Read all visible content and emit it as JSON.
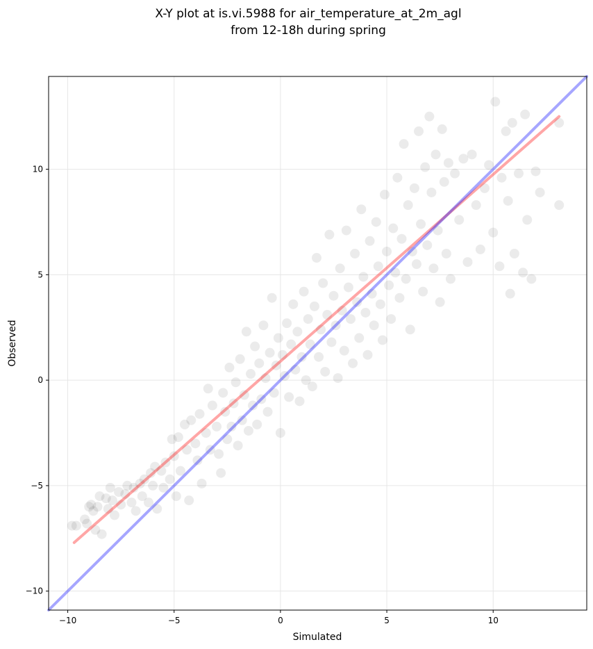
{
  "chart_data": {
    "type": "scatter",
    "title": "X-Y plot at is.vi.5988 for air_temperature_at_2m_agl",
    "subtitle": "from 12-18h during spring",
    "xlabel": "Simulated",
    "ylabel": "Observed",
    "xlim": [
      -10.9,
      14.4
    ],
    "ylim": [
      -10.9,
      14.4
    ],
    "xticks": [
      -10,
      -5,
      0,
      5,
      10
    ],
    "yticks": [
      -10,
      -5,
      0,
      5,
      10
    ],
    "xtick_labels": [
      "−10",
      "−5",
      "0",
      "5",
      "10"
    ],
    "ytick_labels": [
      "−10",
      "−5",
      "0",
      "5",
      "10"
    ],
    "grid": true,
    "marker_color": "#000000",
    "marker_alpha": 0.08,
    "series": [
      {
        "values": [
          [
            -9.8,
            -6.9
          ],
          [
            -9.6,
            -6.9
          ],
          [
            -9.2,
            -6.6
          ],
          [
            -9.1,
            -6.8
          ],
          [
            -9.0,
            -6.0
          ],
          [
            -8.9,
            -5.9
          ],
          [
            -8.8,
            -6.2
          ],
          [
            -8.7,
            -7.1
          ],
          [
            -8.6,
            -6.0
          ],
          [
            -8.5,
            -5.5
          ],
          [
            -8.4,
            -7.3
          ],
          [
            -8.2,
            -5.6
          ],
          [
            -8.1,
            -6.1
          ],
          [
            -8.0,
            -5.1
          ],
          [
            -7.9,
            -5.7
          ],
          [
            -7.8,
            -6.4
          ],
          [
            -7.6,
            -5.3
          ],
          [
            -7.5,
            -5.9
          ],
          [
            -7.3,
            -5.4
          ],
          [
            -7.2,
            -5.0
          ],
          [
            -7.0,
            -5.8
          ],
          [
            -6.9,
            -5.1
          ],
          [
            -6.8,
            -6.2
          ],
          [
            -6.6,
            -4.9
          ],
          [
            -6.5,
            -5.5
          ],
          [
            -6.4,
            -4.7
          ],
          [
            -6.2,
            -5.8
          ],
          [
            -6.1,
            -4.4
          ],
          [
            -6.0,
            -5.0
          ],
          [
            -5.9,
            -4.1
          ],
          [
            -5.8,
            -6.1
          ],
          [
            -5.6,
            -4.3
          ],
          [
            -5.5,
            -5.1
          ],
          [
            -5.4,
            -3.9
          ],
          [
            -5.2,
            -4.7
          ],
          [
            -5.1,
            -2.8
          ],
          [
            -5.0,
            -3.6
          ],
          [
            -4.9,
            -5.5
          ],
          [
            -4.8,
            -2.7
          ],
          [
            -4.7,
            -4.3
          ],
          [
            -4.5,
            -2.1
          ],
          [
            -4.4,
            -3.3
          ],
          [
            -4.3,
            -5.7
          ],
          [
            -4.2,
            -1.9
          ],
          [
            -4.0,
            -3.0
          ],
          [
            -3.9,
            -3.8
          ],
          [
            -3.8,
            -1.6
          ],
          [
            -3.7,
            -4.9
          ],
          [
            -3.5,
            -2.5
          ],
          [
            -3.4,
            -0.4
          ],
          [
            -3.3,
            -3.3
          ],
          [
            -3.2,
            -1.2
          ],
          [
            -3.0,
            -2.2
          ],
          [
            -2.9,
            -3.5
          ],
          [
            -2.8,
            -4.4
          ],
          [
            -2.7,
            -0.6
          ],
          [
            -2.6,
            -1.5
          ],
          [
            -2.5,
            -2.8
          ],
          [
            -2.4,
            0.6
          ],
          [
            -2.3,
            -2.2
          ],
          [
            -2.2,
            -1.1
          ],
          [
            -2.1,
            -0.1
          ],
          [
            -2.0,
            -3.1
          ],
          [
            -1.9,
            1.0
          ],
          [
            -1.8,
            -1.9
          ],
          [
            -1.7,
            -0.7
          ],
          [
            -1.6,
            2.3
          ],
          [
            -1.5,
            -2.4
          ],
          [
            -1.4,
            0.3
          ],
          [
            -1.3,
            -1.2
          ],
          [
            -1.2,
            1.6
          ],
          [
            -1.1,
            -2.1
          ],
          [
            -1.0,
            0.8
          ],
          [
            -0.9,
            -0.9
          ],
          [
            -0.8,
            2.6
          ],
          [
            -0.7,
            0.1
          ],
          [
            -0.6,
            -1.5
          ],
          [
            -0.5,
            1.3
          ],
          [
            -0.4,
            3.9
          ],
          [
            -0.3,
            -0.6
          ],
          [
            -0.2,
            0.7
          ],
          [
            -0.1,
            2.0
          ],
          [
            0.0,
            -2.5
          ],
          [
            0.1,
            1.2
          ],
          [
            0.2,
            0.2
          ],
          [
            0.3,
            2.7
          ],
          [
            0.4,
            -0.8
          ],
          [
            0.5,
            1.7
          ],
          [
            0.6,
            3.6
          ],
          [
            0.7,
            0.5
          ],
          [
            0.8,
            2.3
          ],
          [
            0.9,
            -1.0
          ],
          [
            1.0,
            1.1
          ],
          [
            1.1,
            4.2
          ],
          [
            1.2,
            0.0
          ],
          [
            1.3,
            2.9
          ],
          [
            1.4,
            1.7
          ],
          [
            1.5,
            -0.3
          ],
          [
            1.6,
            3.5
          ],
          [
            1.7,
            5.8
          ],
          [
            1.8,
            1.1
          ],
          [
            1.9,
            2.4
          ],
          [
            2.0,
            4.6
          ],
          [
            2.1,
            0.4
          ],
          [
            2.2,
            3.1
          ],
          [
            2.3,
            6.9
          ],
          [
            2.4,
            1.8
          ],
          [
            2.5,
            4.0
          ],
          [
            2.6,
            2.6
          ],
          [
            2.7,
            0.1
          ],
          [
            2.8,
            5.3
          ],
          [
            2.9,
            3.3
          ],
          [
            3.0,
            1.4
          ],
          [
            3.1,
            7.1
          ],
          [
            3.2,
            4.4
          ],
          [
            3.3,
            2.9
          ],
          [
            3.4,
            0.8
          ],
          [
            3.5,
            6.0
          ],
          [
            3.6,
            3.7
          ],
          [
            3.7,
            2.0
          ],
          [
            3.8,
            8.1
          ],
          [
            3.9,
            4.9
          ],
          [
            4.0,
            3.2
          ],
          [
            4.1,
            1.2
          ],
          [
            4.2,
            6.6
          ],
          [
            4.3,
            4.1
          ],
          [
            4.4,
            2.6
          ],
          [
            4.5,
            7.5
          ],
          [
            4.6,
            5.4
          ],
          [
            4.7,
            3.6
          ],
          [
            4.8,
            1.9
          ],
          [
            4.9,
            8.8
          ],
          [
            5.0,
            6.1
          ],
          [
            5.1,
            4.5
          ],
          [
            5.2,
            2.9
          ],
          [
            5.3,
            7.2
          ],
          [
            5.4,
            5.1
          ],
          [
            5.5,
            9.6
          ],
          [
            5.6,
            3.9
          ],
          [
            5.7,
            6.7
          ],
          [
            5.8,
            11.2
          ],
          [
            5.9,
            4.8
          ],
          [
            6.0,
            8.3
          ],
          [
            6.1,
            2.4
          ],
          [
            6.2,
            6.1
          ],
          [
            6.3,
            9.1
          ],
          [
            6.4,
            5.5
          ],
          [
            6.5,
            11.8
          ],
          [
            6.6,
            7.4
          ],
          [
            6.7,
            4.2
          ],
          [
            6.8,
            10.1
          ],
          [
            6.9,
            6.4
          ],
          [
            7.0,
            12.5
          ],
          [
            7.1,
            8.9
          ],
          [
            7.2,
            5.3
          ],
          [
            7.3,
            10.7
          ],
          [
            7.4,
            7.1
          ],
          [
            7.5,
            3.7
          ],
          [
            7.6,
            11.9
          ],
          [
            7.7,
            9.4
          ],
          [
            7.8,
            6.0
          ],
          [
            7.9,
            10.3
          ],
          [
            8.0,
            4.8
          ],
          [
            8.2,
            9.8
          ],
          [
            8.4,
            7.6
          ],
          [
            8.6,
            10.5
          ],
          [
            8.8,
            5.6
          ],
          [
            9.0,
            10.7
          ],
          [
            9.2,
            8.3
          ],
          [
            9.4,
            6.2
          ],
          [
            9.6,
            9.1
          ],
          [
            9.8,
            10.2
          ],
          [
            10.0,
            7.0
          ],
          [
            10.1,
            13.2
          ],
          [
            10.3,
            5.4
          ],
          [
            10.4,
            9.6
          ],
          [
            10.6,
            11.8
          ],
          [
            10.7,
            8.5
          ],
          [
            10.8,
            4.1
          ],
          [
            10.9,
            12.2
          ],
          [
            11.0,
            6.0
          ],
          [
            11.2,
            9.8
          ],
          [
            11.4,
            5.1
          ],
          [
            11.5,
            12.6
          ],
          [
            11.6,
            7.6
          ],
          [
            11.8,
            4.8
          ],
          [
            12.0,
            9.9
          ],
          [
            12.2,
            8.9
          ],
          [
            13.1,
            12.2
          ],
          [
            13.1,
            8.3
          ]
        ]
      }
    ],
    "lines": [
      {
        "role": "fit",
        "color": "#ff0000",
        "alpha": 0.35,
        "x": [
          -9.7,
          13.1
        ],
        "y": [
          -7.7,
          12.5
        ]
      },
      {
        "role": "1:1",
        "color": "#0000ff",
        "alpha": 0.35,
        "x": [
          -10.9,
          14.4
        ],
        "y": [
          -10.9,
          14.4
        ]
      }
    ]
  }
}
